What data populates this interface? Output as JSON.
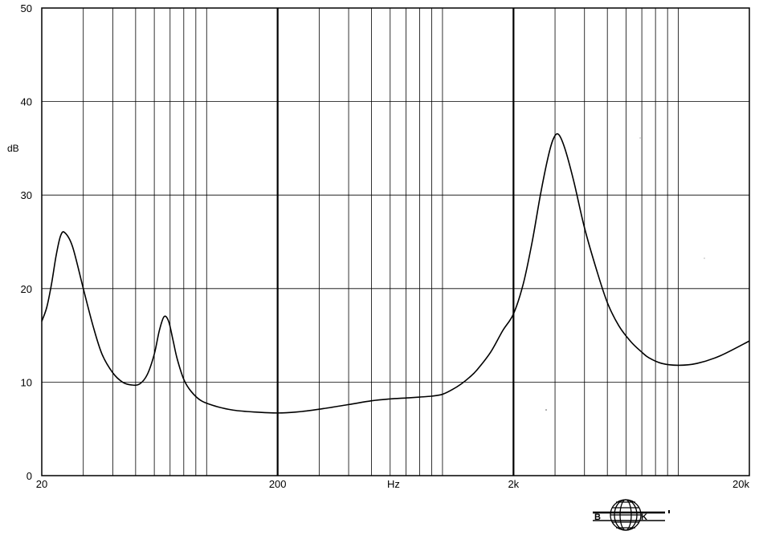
{
  "chart_data": {
    "type": "line",
    "xscale": "log",
    "xlim": [
      20,
      20000
    ],
    "ylim": [
      0,
      50
    ],
    "yticks": [
      0,
      10,
      20,
      30,
      40,
      50
    ],
    "ylabel": "dB",
    "xlabel": "Hz",
    "xtick_labels": [
      {
        "value": 20,
        "label": "20"
      },
      {
        "value": 200,
        "label": "200"
      },
      {
        "value": 2000,
        "label": "2k"
      },
      {
        "value": 20000,
        "label": "20k"
      }
    ],
    "grid": true,
    "series": [
      {
        "x": [
          20,
          21,
          22,
          23,
          24,
          25,
          27,
          30,
          33,
          36,
          40,
          44,
          48,
          52,
          56,
          60,
          63,
          66,
          69,
          72,
          75,
          80,
          86,
          95,
          110,
          130,
          160,
          200,
          240,
          300,
          400,
          500,
          600,
          700,
          800,
          900,
          1000,
          1100,
          1200,
          1300,
          1400,
          1600,
          1800,
          2000,
          2200,
          2400,
          2600,
          2800,
          2950,
          3100,
          3300,
          3600,
          4000,
          4500,
          5000,
          5600,
          6300,
          7000,
          7500,
          8500,
          10000,
          12000,
          15000,
          20000
        ],
        "y": [
          16.5,
          18.0,
          20.5,
          23.5,
          25.6,
          26.0,
          24.5,
          20.0,
          16.0,
          13.0,
          11.0,
          10.0,
          9.7,
          9.8,
          10.8,
          13.0,
          15.5,
          17.0,
          16.5,
          14.5,
          12.5,
          10.3,
          9.0,
          8.0,
          7.4,
          7.0,
          6.8,
          6.7,
          6.8,
          7.1,
          7.6,
          8.0,
          8.2,
          8.3,
          8.4,
          8.5,
          8.7,
          9.2,
          9.8,
          10.5,
          11.3,
          13.2,
          15.5,
          17.3,
          20.5,
          25.0,
          30.0,
          34.0,
          36.0,
          36.5,
          35.0,
          31.5,
          26.5,
          22.0,
          18.5,
          16.0,
          14.3,
          13.2,
          12.6,
          12.0,
          11.8,
          12.0,
          12.8,
          14.4
        ]
      }
    ]
  },
  "logo": {
    "left": "B",
    "right": "K"
  }
}
